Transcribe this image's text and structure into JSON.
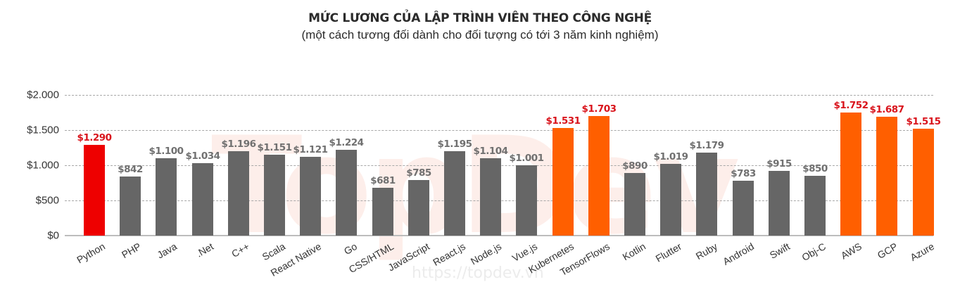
{
  "header": {
    "title": "MỨC LƯƠNG CỦA LẬP TRÌNH VIÊN THEO CÔNG NGHỆ",
    "subtitle": "(một cách tương đối dành cho đối tượng có tới 3 năm kinh nghiệm)"
  },
  "watermark": {
    "logo": "TopDev",
    "url": "https://topdev.vn"
  },
  "colors": {
    "highlight_red": "#EE0000",
    "highlight_orange": "#FF5F00",
    "default_gray": "#666666",
    "label_gray": "#707070",
    "label_red": "#D9141C"
  },
  "chart_data": {
    "type": "bar",
    "title": "MỨC LƯƠNG CỦA LẬP TRÌNH VIÊN THEO CÔNG NGHỆ",
    "subtitle": "(một cách tương đối dành cho đối tượng có tới 3 năm kinh nghiệm)",
    "xlabel": "",
    "ylabel": "",
    "ylim": [
      0,
      2000
    ],
    "yticks": [
      0,
      500,
      1000,
      1500,
      2000
    ],
    "ytick_labels": [
      "$0",
      "$500",
      "$1.000",
      "$1.500",
      "$2.000"
    ],
    "grid": true,
    "legend": null,
    "categories": [
      "Python",
      "PHP",
      "Java",
      ".Net",
      "C++",
      "Scala",
      "React Native",
      "Go",
      "CSS/HTML",
      "JavaScript",
      "React.js",
      "Node.js",
      "Vue.js",
      "Kubernetes",
      "TensorFlows",
      "Kotlin",
      "Flutter",
      "Ruby",
      "Android",
      "Swift",
      "Obj-C",
      "AWS",
      "GCP",
      "Azure"
    ],
    "values": [
      1290,
      842,
      1100,
      1034,
      1196,
      1151,
      1121,
      1224,
      681,
      785,
      1195,
      1104,
      1001,
      1531,
      1703,
      890,
      1019,
      1179,
      783,
      915,
      850,
      1752,
      1687,
      1515
    ],
    "value_labels": [
      "$1.290",
      "$842",
      "$1.100",
      "$1.034",
      "$1.196",
      "$1.151",
      "$1.121",
      "$1.224",
      "$681",
      "$785",
      "$1.195",
      "$1.104",
      "$1.001",
      "$1.531",
      "$1.703",
      "$890",
      "$1.019",
      "$1.179",
      "$783",
      "$915",
      "$850",
      "$1.752",
      "$1.687",
      "$1.515"
    ],
    "bar_colors": [
      "red",
      "gray",
      "gray",
      "gray",
      "gray",
      "gray",
      "gray",
      "gray",
      "gray",
      "gray",
      "gray",
      "gray",
      "gray",
      "orange",
      "orange",
      "gray",
      "gray",
      "gray",
      "gray",
      "gray",
      "gray",
      "orange",
      "orange",
      "orange"
    ]
  }
}
